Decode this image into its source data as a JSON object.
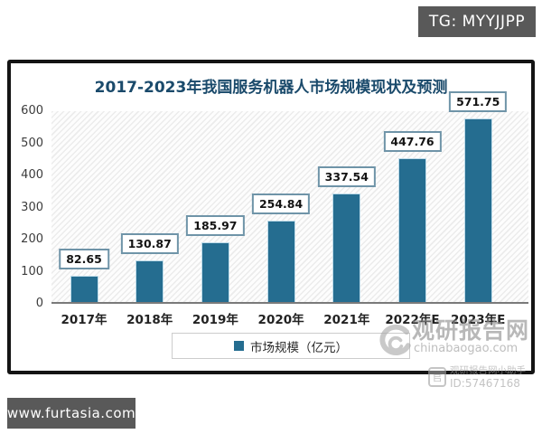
{
  "badges": {
    "top_right": "TG: MYYJJPP",
    "bottom_left": "www.furtasia.com"
  },
  "chart": {
    "title": "2017-2023年我国服务机器人市场规模现状及预测",
    "legend_label": "市场规模（亿元）"
  },
  "chart_data": {
    "type": "bar",
    "title": "2017-2023年我国服务机器人市场规模现状及预测",
    "categories": [
      "2017年",
      "2018年",
      "2019年",
      "2020年",
      "2021年",
      "2022年E",
      "2023年E"
    ],
    "values": [
      82.65,
      130.87,
      185.97,
      254.84,
      337.54,
      447.76,
      571.75
    ],
    "series_name": "市场规模（亿元）",
    "xlabel": "",
    "ylabel": "亿元",
    "ylim": [
      0,
      600
    ],
    "y_ticks": [
      0,
      100,
      200,
      300,
      400,
      500,
      600
    ],
    "grid": false,
    "legend_position": "bottom",
    "data_labels": true
  },
  "watermark": {
    "brand": "观研报告网",
    "domain": "chinabaogao.com",
    "helper_name": "观研报告网小助手",
    "helper_id": "ID:57467168",
    "qr_glyph": "官"
  },
  "colors": {
    "bar": "#256d90",
    "title": "#1a4a6b",
    "badge_bg": "#595959",
    "value_box_border": "#6f94a8",
    "frame_border": "#141414"
  }
}
